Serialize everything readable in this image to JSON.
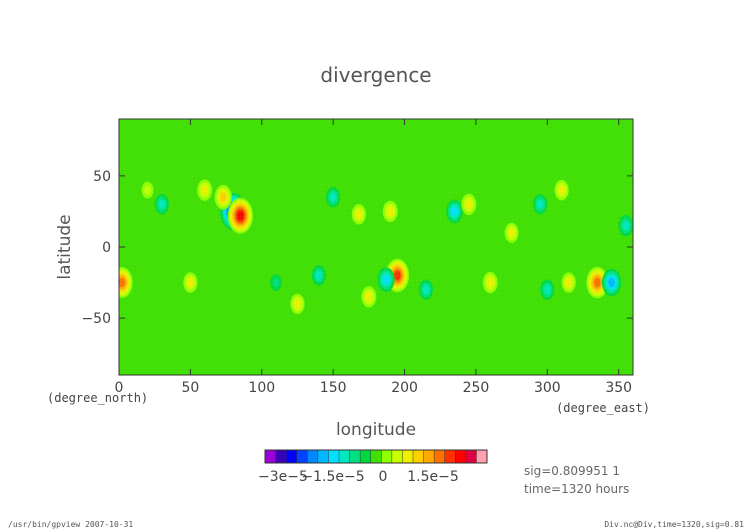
{
  "chart_data": {
    "type": "heatmap",
    "title": "divergence",
    "xlabel": "longitude",
    "ylabel": "latitude",
    "x_unit": "(degree_east)",
    "y_unit": "(degree_north)",
    "xlim": [
      0,
      360
    ],
    "ylim": [
      -90,
      90
    ],
    "x_ticks": [
      "0",
      "50",
      "100",
      "150",
      "200",
      "250",
      "300",
      "350"
    ],
    "y_ticks": [
      "50",
      "0",
      "−50"
    ],
    "background_level": 0,
    "colorbar": {
      "colors": [
        "#9a00d8",
        "#3a00b8",
        "#0000ff",
        "#0044ff",
        "#0088ff",
        "#00b8ff",
        "#00e0ff",
        "#00e8c0",
        "#00e080",
        "#00d840",
        "#40e000",
        "#90ff00",
        "#c8ff00",
        "#f0f000",
        "#ffd000",
        "#ffa800",
        "#ff7000",
        "#ff3000",
        "#ff0000",
        "#e00040",
        "#ff9fb0"
      ],
      "labels": [
        "−3e−5",
        "−1.5e−5",
        "0",
        "1.5e−5"
      ]
    },
    "features": [
      {
        "lon": 80,
        "lat": 25,
        "value": -3e-05
      },
      {
        "lon": 85,
        "lat": 22,
        "value": 2.8e-05
      },
      {
        "lon": 73,
        "lat": 35,
        "value": 1.5e-05
      },
      {
        "lon": 60,
        "lat": 40,
        "value": 1.2e-05
      },
      {
        "lon": 195,
        "lat": -20,
        "value": 2.5e-05
      },
      {
        "lon": 187,
        "lat": -23,
        "value": -1.5e-05
      },
      {
        "lon": 335,
        "lat": -25,
        "value": 2.3e-05
      },
      {
        "lon": 345,
        "lat": -25,
        "value": -1.8e-05
      },
      {
        "lon": 2,
        "lat": -25,
        "value": 2.2e-05
      },
      {
        "lon": 355,
        "lat": 15,
        "value": -1.2e-05
      },
      {
        "lon": 190,
        "lat": 25,
        "value": 1.2e-05
      },
      {
        "lon": 235,
        "lat": 25,
        "value": -1.3e-05
      },
      {
        "lon": 245,
        "lat": 30,
        "value": 1.2e-05
      },
      {
        "lon": 168,
        "lat": 23,
        "value": 1e-05
      },
      {
        "lon": 150,
        "lat": 35,
        "value": -1e-05
      },
      {
        "lon": 50,
        "lat": -25,
        "value": 1e-05
      },
      {
        "lon": 125,
        "lat": -40,
        "value": 1e-05
      },
      {
        "lon": 140,
        "lat": -20,
        "value": -1e-05
      },
      {
        "lon": 175,
        "lat": -35,
        "value": 1.2e-05
      },
      {
        "lon": 215,
        "lat": -30,
        "value": -1e-05
      },
      {
        "lon": 260,
        "lat": -25,
        "value": 1.2e-05
      },
      {
        "lon": 300,
        "lat": -30,
        "value": -1e-05
      },
      {
        "lon": 315,
        "lat": -25,
        "value": 1e-05
      },
      {
        "lon": 310,
        "lat": 40,
        "value": 1e-05
      },
      {
        "lon": 295,
        "lat": 30,
        "value": -1e-05
      },
      {
        "lon": 30,
        "lat": 30,
        "value": -1e-05
      },
      {
        "lon": 20,
        "lat": 40,
        "value": 8e-06
      },
      {
        "lon": 110,
        "lat": -25,
        "value": -8e-06
      },
      {
        "lon": 275,
        "lat": 10,
        "value": 9e-06
      }
    ]
  },
  "info": {
    "sig": "sig=0.809951 1",
    "time": "time=1320 hours"
  },
  "footer": {
    "left": "/usr/bin/gpview  2007-10-31",
    "right": "Div.nc@Div,time=1320,sig=0.81"
  }
}
